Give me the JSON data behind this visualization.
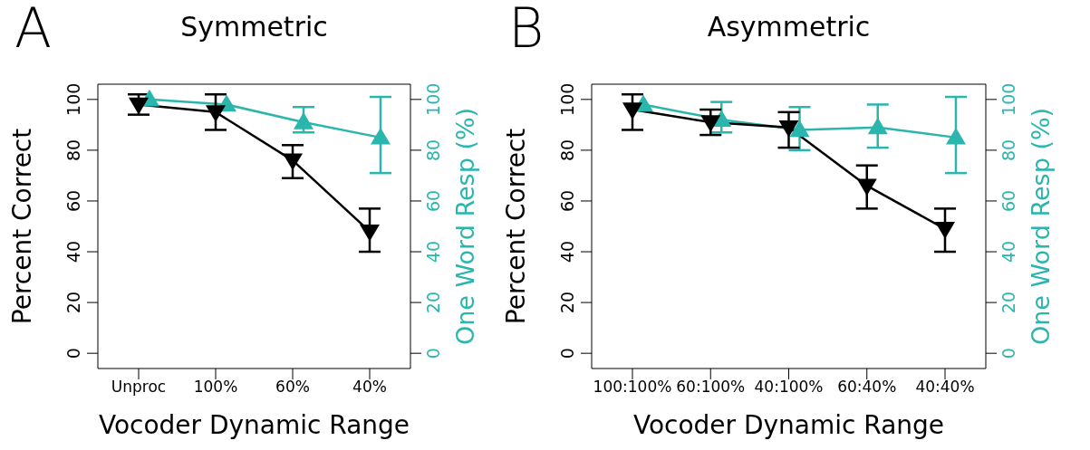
{
  "chart_data": [
    {
      "type": "line",
      "title": "Symmetric",
      "annotations": [
        "A"
      ],
      "xlabel": "Vocoder Dynamic Range",
      "ylabel": "Percent Correct",
      "y2label": "One Word Resp (%)",
      "categories": [
        "Unproc",
        "100%",
        "60%",
        "40%"
      ],
      "ylim": [
        -6,
        106
      ],
      "yticks": [
        0,
        20,
        40,
        60,
        80,
        100
      ],
      "y2lim": [
        -6,
        106
      ],
      "y2ticks": [
        0,
        20,
        40,
        60,
        80,
        100
      ],
      "series": [
        {
          "color": "#000000",
          "marker": "triangle_down",
          "values": [
            98,
            95,
            76,
            48
          ],
          "errors": [
            [
              94,
              102
            ],
            [
              88,
              102
            ],
            [
              69,
              82
            ],
            [
              40,
              57
            ]
          ]
        },
        {
          "color": "#2ab5ad",
          "marker": "triangle",
          "axis": "y2",
          "values": [
            100,
            98,
            91,
            85
          ],
          "errors": [
            null,
            null,
            [
              87,
              97
            ],
            [
              71,
              101
            ]
          ]
        }
      ]
    },
    {
      "type": "line",
      "title": "Asymmetric",
      "annotations": [
        "B"
      ],
      "xlabel": "Vocoder Dynamic Range",
      "ylabel": "Percent Correct",
      "y2label": "One Word Resp (%)",
      "categories": [
        "100:100%",
        "60:100%",
        "40:100%",
        "60:40%",
        "40:40%"
      ],
      "ylim": [
        -6,
        106
      ],
      "yticks": [
        0,
        20,
        40,
        60,
        80,
        100
      ],
      "y2lim": [
        -6,
        106
      ],
      "y2ticks": [
        0,
        20,
        40,
        60,
        80,
        100
      ],
      "series": [
        {
          "color": "#000000",
          "marker": "triangle_down",
          "values": [
            96,
            91,
            89,
            66,
            49
          ],
          "errors": [
            [
              88,
              102
            ],
            [
              86,
              96
            ],
            [
              81,
              95
            ],
            [
              57,
              74
            ],
            [
              40,
              57
            ]
          ]
        },
        {
          "color": "#2ab5ad",
          "marker": "triangle",
          "axis": "y2",
          "values": [
            98,
            92,
            88,
            89,
            85
          ],
          "errors": [
            null,
            [
              87,
              99
            ],
            [
              80,
              97
            ],
            [
              81,
              98
            ],
            [
              71,
              101
            ]
          ]
        }
      ]
    }
  ]
}
